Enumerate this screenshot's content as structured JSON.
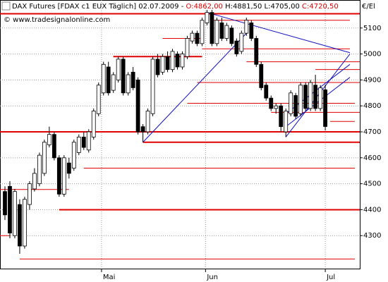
{
  "chart_data": {
    "type": "candlestick",
    "title": "DAX Futures [FDAX c1 EUX  Täglich] 02.07.2009 - ",
    "header_open": "O:4862,00",
    "header_high_low": " H:4881,50 L:4705,00 ",
    "header_close": "C:4720,50",
    "copyright": "© www.tradesignalonline.com",
    "unit_label": "€/El",
    "up_color": "#ffffff",
    "down_color": "#000000",
    "level_color": "#e00000",
    "trend_color": "#1010c0",
    "grid": true,
    "ylim": [
      4173,
      5208
    ],
    "yticks": [
      4300,
      4400,
      4500,
      4600,
      4700,
      4800,
      4900,
      5000,
      5100
    ],
    "xlim": [
      -1,
      72
    ],
    "xticks": [
      {
        "value": 19.6,
        "label": "Mai"
      },
      {
        "value": 40.7,
        "label": "Jun"
      },
      {
        "value": 65,
        "label": "Jul"
      }
    ],
    "ohlc": [
      [
        4470,
        4490,
        4360,
        4380
      ],
      [
        4490,
        4510,
        4290,
        4310
      ],
      [
        4300,
        4480,
        4290,
        4470
      ],
      [
        4420,
        4440,
        4230,
        4260
      ],
      [
        4260,
        4450,
        4250,
        4440
      ],
      [
        4420,
        4510,
        4400,
        4500
      ],
      [
        4480,
        4560,
        4470,
        4540
      ],
      [
        4500,
        4620,
        4490,
        4610
      ],
      [
        4540,
        4670,
        4530,
        4660
      ],
      [
        4650,
        4720,
        4640,
        4690
      ],
      [
        4690,
        4700,
        4590,
        4600
      ],
      [
        4600,
        4610,
        4450,
        4460
      ],
      [
        4460,
        4610,
        4450,
        4600
      ],
      [
        4580,
        4600,
        4520,
        4540
      ],
      [
        4560,
        4670,
        4550,
        4660
      ],
      [
        4620,
        4690,
        4610,
        4680
      ],
      [
        4680,
        4700,
        4630,
        4640
      ],
      [
        4630,
        4710,
        4620,
        4700
      ],
      [
        4680,
        4790,
        4670,
        4780
      ],
      [
        4770,
        4890,
        4760,
        4880
      ],
      [
        4850,
        4970,
        4840,
        4960
      ],
      [
        4950,
        4970,
        4840,
        4850
      ],
      [
        4860,
        4930,
        4850,
        4920
      ],
      [
        4900,
        4990,
        4890,
        4980
      ],
      [
        4980,
        4990,
        4840,
        4850
      ],
      [
        4850,
        4930,
        4840,
        4920
      ],
      [
        4930,
        4950,
        4860,
        4870
      ],
      [
        4900,
        4910,
        4690,
        4700
      ],
      [
        4720,
        4730,
        4660,
        4700
      ],
      [
        4700,
        4790,
        4690,
        4780
      ],
      [
        4770,
        4990,
        4760,
        4980
      ],
      [
        4980,
        5000,
        4910,
        4920
      ],
      [
        4930,
        5000,
        4920,
        4990
      ],
      [
        4990,
        5010,
        4930,
        4940
      ],
      [
        4940,
        5020,
        4930,
        5010
      ],
      [
        5000,
        5010,
        4940,
        4950
      ],
      [
        4950,
        5010,
        4940,
        5000
      ],
      [
        4990,
        5070,
        4980,
        5060
      ],
      [
        5050,
        5090,
        5040,
        5080
      ],
      [
        5080,
        5090,
        5030,
        5040
      ],
      [
        5040,
        5140,
        5030,
        5130
      ],
      [
        5120,
        5170,
        5110,
        5160
      ],
      [
        5160,
        5170,
        5030,
        5040
      ],
      [
        5040,
        5140,
        5030,
        5130
      ],
      [
        5120,
        5140,
        5050,
        5060
      ],
      [
        5060,
        5120,
        5050,
        5110
      ],
      [
        5100,
        5110,
        5030,
        5040
      ],
      [
        5050,
        5060,
        4990,
        5000
      ],
      [
        5010,
        5090,
        5000,
        5080
      ],
      [
        5080,
        5140,
        5070,
        5130
      ],
      [
        5120,
        5130,
        5050,
        5060
      ],
      [
        5060,
        5070,
        4950,
        4960
      ],
      [
        4960,
        4970,
        4860,
        4870
      ],
      [
        4880,
        4890,
        4820,
        4830
      ],
      [
        4830,
        4840,
        4780,
        4790
      ],
      [
        4790,
        4810,
        4770,
        4800
      ],
      [
        4800,
        4810,
        4700,
        4720
      ],
      [
        4700,
        4790,
        4680,
        4780
      ],
      [
        4770,
        4860,
        4760,
        4850
      ],
      [
        4840,
        4850,
        4750,
        4760
      ],
      [
        4770,
        4890,
        4760,
        4880
      ],
      [
        4880,
        4890,
        4780,
        4790
      ],
      [
        4790,
        4900,
        4780,
        4890
      ],
      [
        4880,
        4920,
        4780,
        4790
      ],
      [
        4790,
        4880,
        4780,
        4870
      ],
      [
        4862,
        4881.5,
        4705,
        4720.5
      ]
    ],
    "levels": [
      {
        "value": 5155,
        "from": -1,
        "to": 72,
        "thick": true
      },
      {
        "value": 5130,
        "from": 42,
        "to": 70,
        "thick": false
      },
      {
        "value": 5060,
        "from": 32,
        "to": 40,
        "thick": false
      },
      {
        "value": 5020,
        "from": 40,
        "to": 70,
        "thick": false
      },
      {
        "value": 4990,
        "from": 22,
        "to": 40,
        "thick": true
      },
      {
        "value": 4970,
        "from": 49,
        "to": 72,
        "thick": false
      },
      {
        "value": 4940,
        "from": 63,
        "to": 72,
        "thick": false
      },
      {
        "value": 4890,
        "from": 39,
        "to": 72,
        "thick": false
      },
      {
        "value": 4810,
        "from": 37,
        "to": 71,
        "thick": false
      },
      {
        "value": 4775,
        "from": 54,
        "to": 72,
        "thick": false
      },
      {
        "value": 4740,
        "from": 66,
        "to": 71,
        "thick": false
      },
      {
        "value": 4700,
        "from": -1,
        "to": 72,
        "thick": true
      },
      {
        "value": 4660,
        "from": 28,
        "to": 72,
        "thick": true
      },
      {
        "value": 4560,
        "from": 16,
        "to": 71,
        "thick": false
      },
      {
        "value": 4478,
        "from": -1,
        "to": 13,
        "thick": false
      },
      {
        "value": 4400,
        "from": 11,
        "to": 72,
        "thick": true
      },
      {
        "value": 4300,
        "from": -1,
        "to": 1,
        "thick": false
      },
      {
        "value": 4210,
        "from": 3,
        "to": 71,
        "thick": false
      }
    ],
    "trendlines": [
      {
        "from": [
          28,
          4660
        ],
        "to": [
          49,
          5080
        ]
      },
      {
        "from": [
          41,
          5160
        ],
        "to": [
          70,
          5005
        ]
      },
      {
        "from": [
          57,
          4680
        ],
        "to": [
          70,
          5000
        ]
      },
      {
        "from": [
          57,
          4720
        ],
        "to": [
          70,
          4910
        ]
      },
      {
        "from": [
          57,
          4770
        ],
        "to": [
          70,
          4960
        ]
      }
    ]
  }
}
